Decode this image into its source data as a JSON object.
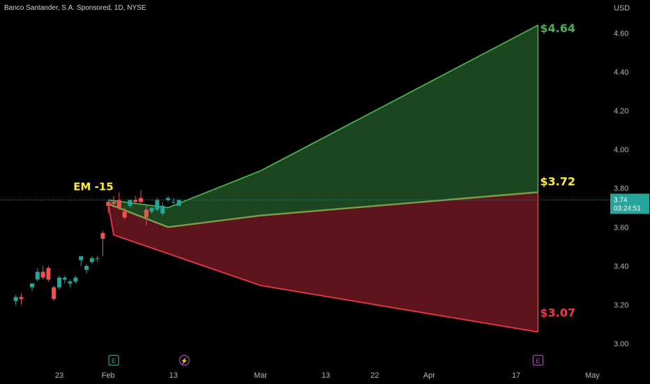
{
  "header": {
    "title": "Banco Santander, S.A. Sponsored, 1D, NYSE",
    "currency": "USD"
  },
  "colors": {
    "up": "#26a69a",
    "down": "#ef5350",
    "upper_line": "#4caf50",
    "upper_fill": "#1b4620",
    "lower_line": "#f23645",
    "lower_fill": "#5e141c",
    "mid_line": "#78a04a",
    "em_label": "#ffeb3b",
    "axis_text": "#b2b5be",
    "background": "#000000"
  },
  "chart_data": {
    "type": "candlestick",
    "x_tick_labels": [
      {
        "label": "23",
        "day": 0
      },
      {
        "label": "Feb",
        "day": 9
      },
      {
        "label": "13",
        "day": 21
      },
      {
        "label": "Mar",
        "day": 37
      },
      {
        "label": "13",
        "day": 49
      },
      {
        "label": "22",
        "day": 58
      },
      {
        "label": "Apr",
        "day": 68
      },
      {
        "label": "17",
        "day": 84
      },
      {
        "label": "May",
        "day": 98
      }
    ],
    "y_ticks": [
      3.0,
      3.2,
      3.4,
      3.6,
      3.8,
      4.0,
      4.2,
      4.4,
      4.6
    ],
    "ylim": [
      2.9,
      4.77
    ],
    "candles": [
      {
        "day": -8,
        "o": 3.22,
        "h": 3.25,
        "l": 3.2,
        "c": 3.24
      },
      {
        "day": -7,
        "o": 3.24,
        "h": 3.26,
        "l": 3.2,
        "c": 3.23
      },
      {
        "day": -5,
        "o": 3.29,
        "h": 3.31,
        "l": 3.27,
        "c": 3.31
      },
      {
        "day": -4,
        "o": 3.33,
        "h": 3.39,
        "l": 3.32,
        "c": 3.37
      },
      {
        "day": -3,
        "o": 3.37,
        "h": 3.4,
        "l": 3.33,
        "c": 3.34
      },
      {
        "day": -2,
        "o": 3.39,
        "h": 3.4,
        "l": 3.32,
        "c": 3.33
      },
      {
        "day": -1,
        "o": 3.29,
        "h": 3.3,
        "l": 3.22,
        "c": 3.23
      },
      {
        "day": 0,
        "o": 3.29,
        "h": 3.35,
        "l": 3.28,
        "c": 3.34
      },
      {
        "day": 1,
        "o": 3.33,
        "h": 3.35,
        "l": 3.31,
        "c": 3.34
      },
      {
        "day": 2,
        "o": 3.31,
        "h": 3.33,
        "l": 3.29,
        "c": 3.32
      },
      {
        "day": 3,
        "o": 3.32,
        "h": 3.35,
        "l": 3.31,
        "c": 3.34
      },
      {
        "day": 4,
        "o": 3.43,
        "h": 3.45,
        "l": 3.4,
        "c": 3.45
      },
      {
        "day": 5,
        "o": 3.38,
        "h": 3.41,
        "l": 3.36,
        "c": 3.4
      },
      {
        "day": 6,
        "o": 3.42,
        "h": 3.45,
        "l": 3.41,
        "c": 3.44
      },
      {
        "day": 7,
        "o": 3.44,
        "h": 3.45,
        "l": 3.42,
        "c": 3.44
      },
      {
        "day": 8,
        "o": 3.57,
        "h": 3.58,
        "l": 3.45,
        "c": 3.54
      },
      {
        "day": 9,
        "o": 3.73,
        "h": 3.74,
        "l": 3.67,
        "c": 3.71
      },
      {
        "day": 10,
        "o": 3.73,
        "h": 3.76,
        "l": 3.7,
        "c": 3.72
      },
      {
        "day": 11,
        "o": 3.74,
        "h": 3.78,
        "l": 3.69,
        "c": 3.7
      },
      {
        "day": 12,
        "o": 3.68,
        "h": 3.7,
        "l": 3.64,
        "c": 3.65
      },
      {
        "day": 13,
        "o": 3.71,
        "h": 3.74,
        "l": 3.7,
        "c": 3.74
      },
      {
        "day": 14,
        "o": 3.74,
        "h": 3.76,
        "l": 3.72,
        "c": 3.73
      },
      {
        "day": 15,
        "o": 3.75,
        "h": 3.79,
        "l": 3.72,
        "c": 3.73
      },
      {
        "day": 16,
        "o": 3.69,
        "h": 3.71,
        "l": 3.61,
        "c": 3.65
      },
      {
        "day": 17,
        "o": 3.68,
        "h": 3.7,
        "l": 3.67,
        "c": 3.7
      },
      {
        "day": 18,
        "o": 3.69,
        "h": 3.75,
        "l": 3.68,
        "c": 3.74
      },
      {
        "day": 19,
        "o": 3.67,
        "h": 3.73,
        "l": 3.66,
        "c": 3.71
      },
      {
        "day": 20,
        "o": 3.74,
        "h": 3.76,
        "l": 3.73,
        "c": 3.75
      },
      {
        "day": 21,
        "o": 3.73,
        "h": 3.75,
        "l": 3.72,
        "c": 3.73
      },
      {
        "day": 22,
        "o": 3.71,
        "h": 3.74,
        "l": 3.71,
        "c": 3.74
      }
    ],
    "expected_move": {
      "label": "EM -15",
      "upper": [
        {
          "day": 9,
          "v": 3.74
        },
        {
          "day": 20,
          "v": 3.7
        },
        {
          "day": 37,
          "v": 3.89
        },
        {
          "day": 88,
          "v": 4.64
        }
      ],
      "mid": [
        {
          "day": 9,
          "v": 3.72
        },
        {
          "day": 20,
          "v": 3.6
        },
        {
          "day": 37,
          "v": 3.66
        },
        {
          "day": 88,
          "v": 3.78
        }
      ],
      "lower": [
        {
          "day": 9,
          "v": 3.72
        },
        {
          "day": 10,
          "v": 3.56
        },
        {
          "day": 37,
          "v": 3.3
        },
        {
          "day": 88,
          "v": 3.06
        }
      ],
      "labels": {
        "upper": "$4.64",
        "mid": "$3.72",
        "lower": "$3.07"
      }
    },
    "last_price": {
      "value": 3.74,
      "price_text": "3.74",
      "countdown": "03:24:51"
    },
    "events": [
      {
        "day": 10,
        "symbol": "E"
      },
      {
        "day": 23,
        "symbol": "⚡"
      },
      {
        "day": 88,
        "symbol": "E"
      }
    ]
  }
}
